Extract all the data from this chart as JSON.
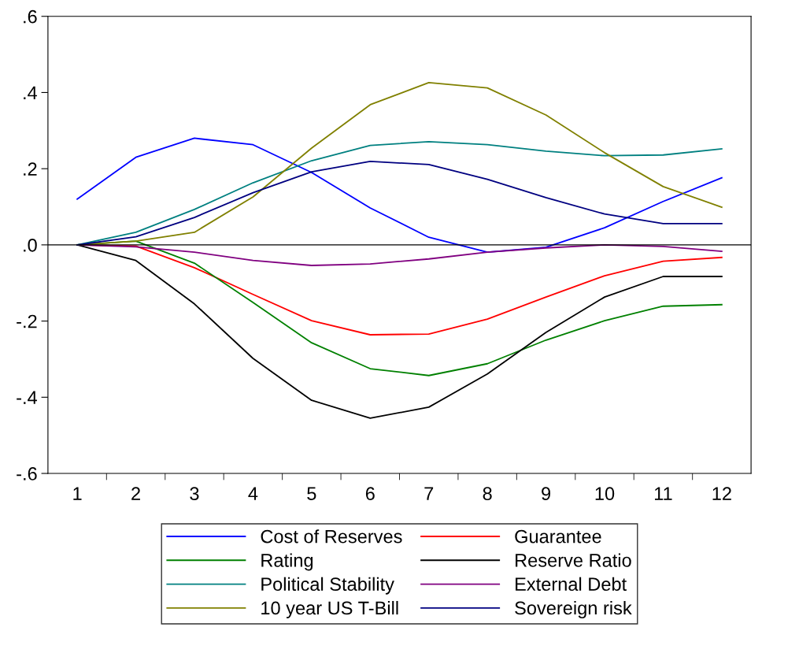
{
  "chart_data": {
    "type": "line",
    "categories": [
      "1",
      "2",
      "3",
      "4",
      "5",
      "6",
      "7",
      "8",
      "9",
      "10",
      "11",
      "12"
    ],
    "ylim": [
      -0.6,
      0.6
    ],
    "yticks": [
      {
        "value": -0.6,
        "label": "-.6"
      },
      {
        "value": -0.4,
        "label": "-.4"
      },
      {
        "value": -0.2,
        "label": "-.2"
      },
      {
        "value": 0,
        "label": ".0"
      },
      {
        "value": 0.2,
        "label": ".2"
      },
      {
        "value": 0.4,
        "label": ".4"
      },
      {
        "value": 0.6,
        "label": ".6"
      }
    ],
    "grid": false,
    "legend": "bottom",
    "marker": "none",
    "line_style": "solid",
    "ref_lines": [
      {
        "axis": "y",
        "value": 0,
        "color": "#000000"
      }
    ],
    "series": [
      {
        "name": "Cost of Reserves",
        "color": "#0000ff",
        "values": [
          0.12,
          0.23,
          0.28,
          0.263,
          0.19,
          0.097,
          0.02,
          -0.019,
          -0.006,
          0.045,
          0.114,
          0.176
        ]
      },
      {
        "name": "Guarantee",
        "color": "#ff0000",
        "values": [
          0,
          -0.003,
          -0.06,
          -0.13,
          -0.199,
          -0.236,
          -0.234,
          -0.195,
          -0.137,
          -0.081,
          -0.043,
          -0.033
        ]
      },
      {
        "name": "Rating",
        "color": "#008000",
        "values": [
          0,
          0.01,
          -0.048,
          -0.151,
          -0.257,
          -0.325,
          -0.343,
          -0.312,
          -0.25,
          -0.199,
          -0.161,
          -0.157
        ]
      },
      {
        "name": "Reserve Ratio",
        "color": "#000000",
        "values": [
          0,
          -0.041,
          -0.155,
          -0.298,
          -0.408,
          -0.455,
          -0.426,
          -0.339,
          -0.23,
          -0.137,
          -0.083,
          -0.083
        ]
      },
      {
        "name": "Political Stability",
        "color": "#008080",
        "values": [
          0,
          0.033,
          0.093,
          0.163,
          0.221,
          0.261,
          0.271,
          0.263,
          0.246,
          0.234,
          0.236,
          0.252
        ]
      },
      {
        "name": "External Debt",
        "color": "#800080",
        "values": [
          0,
          -0.005,
          -0.019,
          -0.041,
          -0.054,
          -0.05,
          -0.037,
          -0.019,
          -0.008,
          0,
          -0.004,
          -0.017
        ]
      },
      {
        "name": "10 year US T-Bill",
        "color": "#808000",
        "values": [
          0,
          0.01,
          0.033,
          0.126,
          0.254,
          0.368,
          0.426,
          0.412,
          0.341,
          0.242,
          0.153,
          0.099
        ]
      },
      {
        "name": "Sovereign risk",
        "color": "#000080",
        "values": [
          0,
          0.021,
          0.072,
          0.137,
          0.192,
          0.219,
          0.211,
          0.172,
          0.124,
          0.081,
          0.056,
          0.056
        ]
      }
    ]
  }
}
